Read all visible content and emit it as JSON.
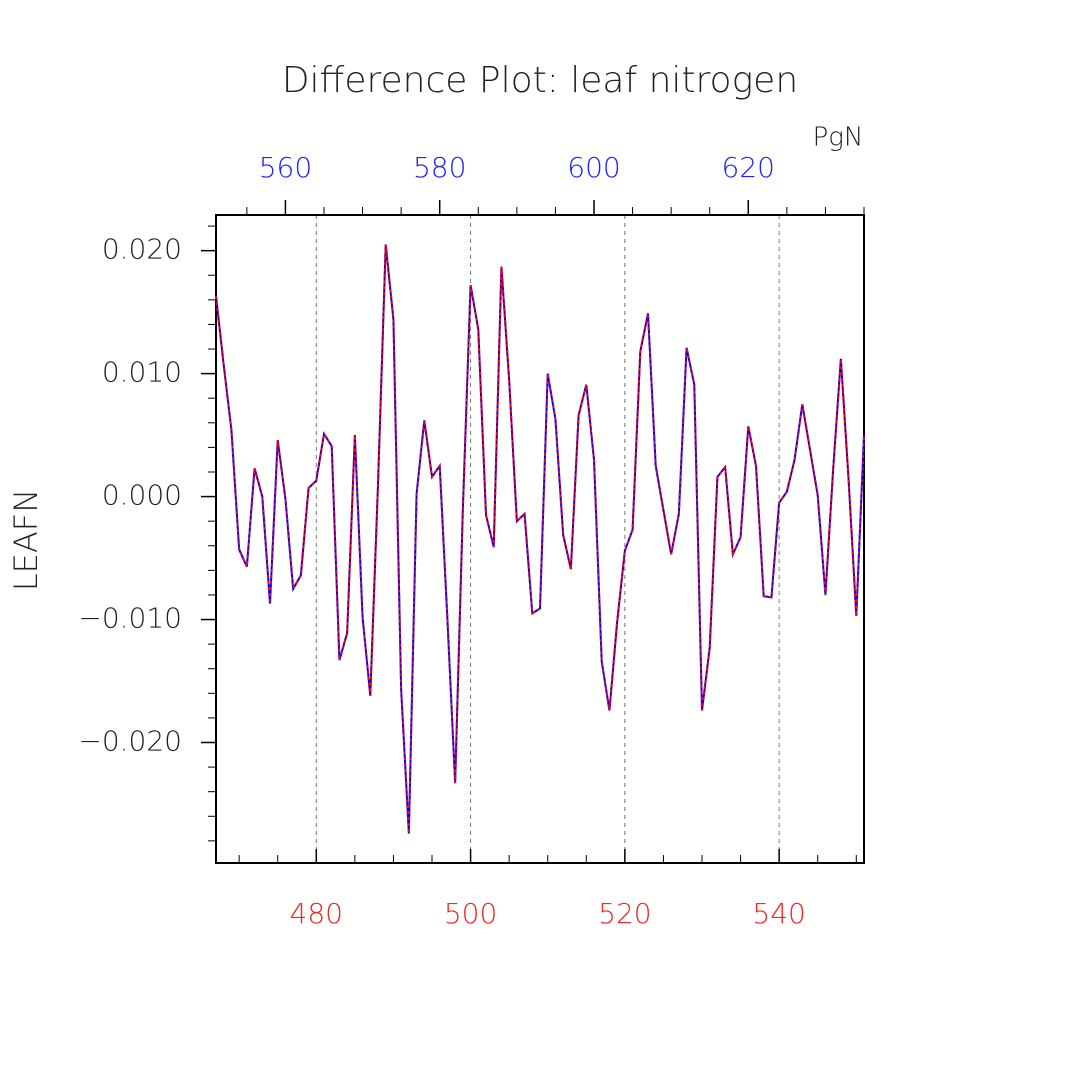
{
  "chart_data": {
    "type": "line",
    "title": "Difference Plot: leaf nitrogen",
    "ylabel": "LEAFN",
    "x2label": "PgN",
    "x": [
      467,
      468,
      469,
      470,
      471,
      472,
      473,
      474,
      475,
      476,
      477,
      478,
      479,
      480,
      481,
      482,
      483,
      484,
      485,
      486,
      487,
      488,
      489,
      490,
      491,
      492,
      493,
      494,
      495,
      496,
      497,
      498,
      499,
      500,
      501,
      502,
      503,
      504,
      505,
      506,
      507,
      508,
      509,
      510,
      511,
      512,
      513,
      514,
      515,
      516,
      517,
      518,
      519,
      520,
      521,
      522,
      523,
      524,
      525,
      526,
      527,
      528,
      529,
      530,
      531,
      532,
      533,
      534,
      535,
      536,
      537,
      538,
      539,
      540,
      541,
      542,
      543,
      544,
      545,
      546,
      547,
      548,
      549,
      550,
      551
    ],
    "series": [
      {
        "color": "#0000ff",
        "dash_color": "#ff0000",
        "values": [
          0.0163,
          0.0107,
          0.0054,
          -0.0043,
          -0.0057,
          0.0023,
          0.0,
          -0.0087,
          0.0046,
          -0.0002,
          -0.0075,
          -0.0064,
          0.0007,
          0.0013,
          0.0051,
          0.0041,
          -0.0133,
          -0.0111,
          0.005,
          -0.0098,
          -0.0162,
          0.001,
          0.0205,
          0.0144,
          -0.0157,
          -0.0274,
          0.0002,
          0.0062,
          0.0016,
          0.0025,
          -0.01,
          -0.0233,
          -0.001,
          0.0172,
          0.0136,
          -0.0015,
          -0.0041,
          0.0187,
          0.0095,
          -0.002,
          -0.0014,
          -0.0095,
          -0.0091,
          0.01,
          0.0063,
          -0.0031,
          -0.0059,
          0.0066,
          0.0091,
          0.003,
          -0.0134,
          -0.0174,
          -0.0102,
          -0.0044,
          -0.0027,
          0.0118,
          0.0149,
          0.0025,
          -0.0011,
          -0.0047,
          -0.0014,
          0.0121,
          0.0091,
          -0.0174,
          -0.0123,
          0.0016,
          0.0024,
          -0.0047,
          -0.0033,
          0.0057,
          0.0025,
          -0.0081,
          -0.0082,
          -0.0005,
          0.0004,
          0.003,
          0.0075,
          0.0038,
          0.0001,
          -0.008,
          0.0022,
          0.0112,
          0.0014,
          -0.0097,
          0.005
        ]
      }
    ],
    "xlim": [
      467,
      551
    ],
    "xticks": [
      480,
      500,
      520,
      540
    ],
    "xminorticks": [
      470,
      475,
      485,
      490,
      495,
      505,
      510,
      515,
      525,
      530,
      535,
      545,
      550
    ],
    "xtick_color": "#ff2020",
    "x2lim": [
      551,
      635
    ],
    "x2ticks": [
      560,
      580,
      600,
      620
    ],
    "x2minorticks": [
      555,
      565,
      570,
      575,
      585,
      590,
      595,
      605,
      610,
      615,
      625,
      630,
      635
    ],
    "x2tick_color": "#2020ff",
    "ylim": [
      -0.0298,
      0.0229
    ],
    "yticks": [
      {
        "value": -0.02,
        "label": "−0.020"
      },
      {
        "value": -0.01,
        "label": "−0.010"
      },
      {
        "value": 0,
        "label": "0.000"
      },
      {
        "value": 0.01,
        "label": "0.010"
      },
      {
        "value": 0.02,
        "label": "0.020"
      }
    ],
    "yminorticks": [
      -0.028,
      -0.026,
      -0.024,
      -0.022,
      -0.018,
      -0.016,
      -0.014,
      -0.012,
      -0.008,
      -0.006,
      -0.004,
      -0.002,
      0.002,
      0.004,
      0.006,
      0.008,
      0.012,
      0.014,
      0.016,
      0.018,
      0.022
    ],
    "grid": true
  }
}
